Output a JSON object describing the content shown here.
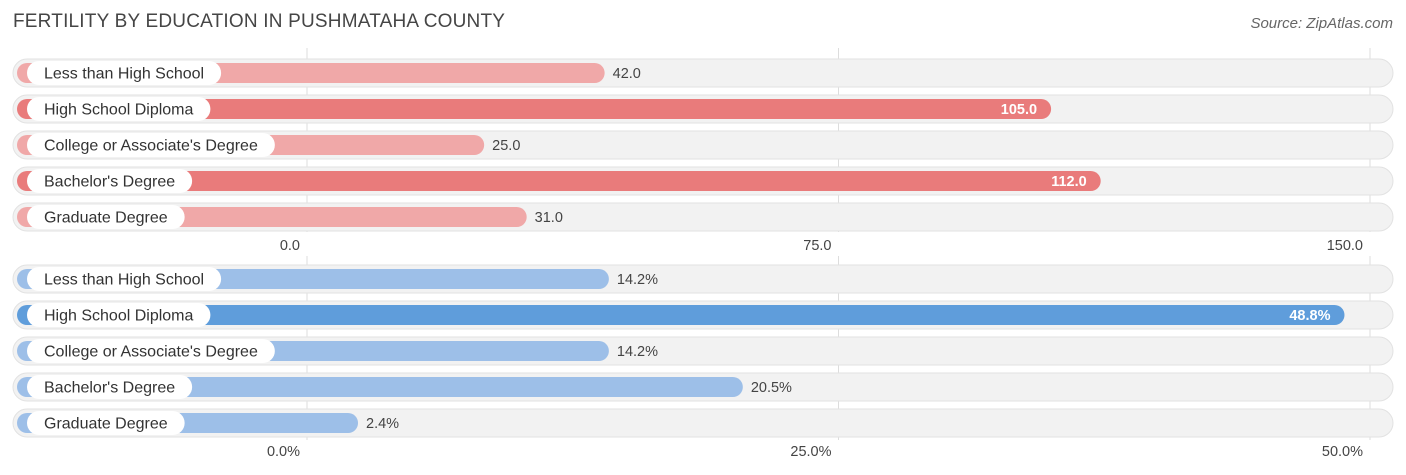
{
  "title": "FERTILITY BY EDUCATION IN PUSHMATAHA COUNTY",
  "source": "Source: ZipAtlas.com",
  "chart_data": [
    {
      "type": "bar",
      "orientation": "horizontal",
      "categories": [
        "Less than High School",
        "High School Diploma",
        "College or Associate's Degree",
        "Bachelor's Degree",
        "Graduate Degree"
      ],
      "values": [
        42.0,
        105.0,
        25.0,
        112.0,
        31.0
      ],
      "value_labels": [
        "42.0",
        "105.0",
        "25.0",
        "112.0",
        "31.0"
      ],
      "xlim": [
        0,
        150
      ],
      "ticks": [
        0,
        75,
        150
      ],
      "tick_labels": [
        "0.0",
        "75.0",
        "150.0"
      ],
      "colors": {
        "bar": "#f0a8a8",
        "bar_highlight": "#e97b7b"
      },
      "highlight": [
        1,
        3
      ]
    },
    {
      "type": "bar",
      "orientation": "horizontal",
      "categories": [
        "Less than High School",
        "High School Diploma",
        "College or Associate's Degree",
        "Bachelor's Degree",
        "Graduate Degree"
      ],
      "values": [
        14.2,
        48.8,
        14.2,
        20.5,
        2.4
      ],
      "value_labels": [
        "14.2%",
        "48.8%",
        "14.2%",
        "20.5%",
        "2.4%"
      ],
      "xlim": [
        0,
        50
      ],
      "ticks": [
        0,
        25,
        50
      ],
      "tick_labels": [
        "0.0%",
        "25.0%",
        "50.0%"
      ],
      "colors": {
        "bar": "#9dbfe8",
        "bar_highlight": "#5f9ddb"
      },
      "highlight": [
        1
      ]
    }
  ]
}
